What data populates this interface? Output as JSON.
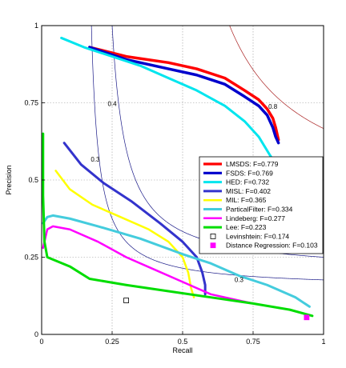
{
  "chart_data": {
    "type": "line",
    "xlabel": "Recall",
    "ylabel": "Precision",
    "xlim": [
      0,
      1
    ],
    "ylim": [
      0,
      1
    ],
    "grid": true,
    "legend_position": "lower-right",
    "x_ticks": [
      "0",
      "0.25",
      "0.5",
      "0.75",
      "1"
    ],
    "y_ticks": [
      "0",
      "0.25",
      "0.5",
      "0.75",
      "1"
    ],
    "contours": [
      {
        "label": "0.8",
        "f": 0.8,
        "color": "#aa2222",
        "label_x": 0.82,
        "label_y": 0.73
      },
      {
        "label": "0.4",
        "f": 0.4,
        "color": "#1a1a88",
        "label_x": 0.25,
        "label_y": 0.74
      },
      {
        "label": "0.3",
        "f": 0.3,
        "color": "#1a1a88",
        "label_x": 0.19,
        "label_y": 0.56
      },
      {
        "label": "0.3",
        "f": 0.3,
        "color": "#1a1a88",
        "label_x": 0.7,
        "label_y": 0.17
      }
    ],
    "series": [
      {
        "name": "LMSDS: F=0.779",
        "color": "#ff0000",
        "width": 3.5,
        "marker": "line",
        "points": [
          [
            0.17,
            0.93
          ],
          [
            0.3,
            0.9
          ],
          [
            0.45,
            0.88
          ],
          [
            0.55,
            0.86
          ],
          [
            0.65,
            0.83
          ],
          [
            0.72,
            0.79
          ],
          [
            0.77,
            0.76
          ],
          [
            0.8,
            0.73
          ],
          [
            0.82,
            0.7
          ],
          [
            0.83,
            0.67
          ],
          [
            0.84,
            0.63
          ]
        ]
      },
      {
        "name": "FSDS: F=0.769",
        "color": "#0000cc",
        "width": 3.5,
        "marker": "line",
        "points": [
          [
            0.17,
            0.93
          ],
          [
            0.3,
            0.89
          ],
          [
            0.45,
            0.86
          ],
          [
            0.55,
            0.84
          ],
          [
            0.65,
            0.81
          ],
          [
            0.72,
            0.77
          ],
          [
            0.77,
            0.74
          ],
          [
            0.8,
            0.71
          ],
          [
            0.82,
            0.67
          ],
          [
            0.83,
            0.64
          ],
          [
            0.84,
            0.62
          ]
        ]
      },
      {
        "name": "HED: F=0.732",
        "color": "#00e5ee",
        "width": 3,
        "marker": "line",
        "points": [
          [
            0.07,
            0.96
          ],
          [
            0.15,
            0.93
          ],
          [
            0.25,
            0.9
          ],
          [
            0.35,
            0.87
          ],
          [
            0.45,
            0.83
          ],
          [
            0.55,
            0.79
          ],
          [
            0.65,
            0.74
          ],
          [
            0.72,
            0.69
          ],
          [
            0.77,
            0.64
          ],
          [
            0.81,
            0.58
          ],
          [
            0.84,
            0.54
          ],
          [
            0.86,
            0.5
          ]
        ]
      },
      {
        "name": "MISL: F=0.402",
        "color": "#3333cc",
        "width": 3,
        "marker": "line",
        "points": [
          [
            0.08,
            0.62
          ],
          [
            0.14,
            0.55
          ],
          [
            0.22,
            0.49
          ],
          [
            0.32,
            0.43
          ],
          [
            0.42,
            0.36
          ],
          [
            0.5,
            0.3
          ],
          [
            0.55,
            0.25
          ],
          [
            0.57,
            0.2
          ],
          [
            0.58,
            0.16
          ],
          [
            0.58,
            0.13
          ]
        ]
      },
      {
        "name": "MIL: F=0.365",
        "color": "#ffff00",
        "width": 2.5,
        "marker": "line",
        "points": [
          [
            0.05,
            0.53
          ],
          [
            0.1,
            0.47
          ],
          [
            0.18,
            0.42
          ],
          [
            0.28,
            0.38
          ],
          [
            0.38,
            0.34
          ],
          [
            0.45,
            0.3
          ],
          [
            0.5,
            0.25
          ],
          [
            0.52,
            0.2
          ],
          [
            0.53,
            0.15
          ],
          [
            0.54,
            0.12
          ]
        ]
      },
      {
        "name": "ParticalFilter: F=0.334",
        "color": "#44ccdd",
        "width": 3,
        "marker": "line",
        "points": [
          [
            0.005,
            0.36
          ],
          [
            0.02,
            0.38
          ],
          [
            0.04,
            0.385
          ],
          [
            0.1,
            0.375
          ],
          [
            0.2,
            0.35
          ],
          [
            0.35,
            0.31
          ],
          [
            0.5,
            0.26
          ],
          [
            0.6,
            0.23
          ],
          [
            0.7,
            0.19
          ],
          [
            0.8,
            0.16
          ],
          [
            0.9,
            0.12
          ],
          [
            0.95,
            0.09
          ]
        ]
      },
      {
        "name": "Lindeberg: F=0.277",
        "color": "#ff00ff",
        "width": 2.5,
        "marker": "line",
        "points": [
          [
            0.005,
            0.28
          ],
          [
            0.02,
            0.34
          ],
          [
            0.04,
            0.35
          ],
          [
            0.1,
            0.34
          ],
          [
            0.2,
            0.3
          ],
          [
            0.3,
            0.25
          ],
          [
            0.4,
            0.21
          ],
          [
            0.5,
            0.17
          ],
          [
            0.6,
            0.13
          ],
          [
            0.7,
            0.11
          ],
          [
            0.75,
            0.1
          ]
        ]
      },
      {
        "name": "Lee: F=0.223",
        "color": "#00dd00",
        "width": 3,
        "marker": "line",
        "points": [
          [
            0.005,
            0.65
          ],
          [
            0.005,
            0.45
          ],
          [
            0.01,
            0.3
          ],
          [
            0.02,
            0.25
          ],
          [
            0.1,
            0.22
          ],
          [
            0.17,
            0.18
          ],
          [
            0.3,
            0.16
          ],
          [
            0.45,
            0.14
          ],
          [
            0.6,
            0.12
          ],
          [
            0.75,
            0.1
          ],
          [
            0.88,
            0.08
          ],
          [
            0.96,
            0.06
          ]
        ]
      },
      {
        "name": "Levinshtein: F=0.174",
        "color": "#000000",
        "width": 1,
        "marker": "square-open",
        "points": [
          [
            0.3,
            0.11
          ]
        ]
      },
      {
        "name": "Distance Regression: F=0.103",
        "color": "#ff00ff",
        "width": 1,
        "marker": "square-filled",
        "points": [
          [
            0.94,
            0.055
          ]
        ]
      }
    ]
  }
}
